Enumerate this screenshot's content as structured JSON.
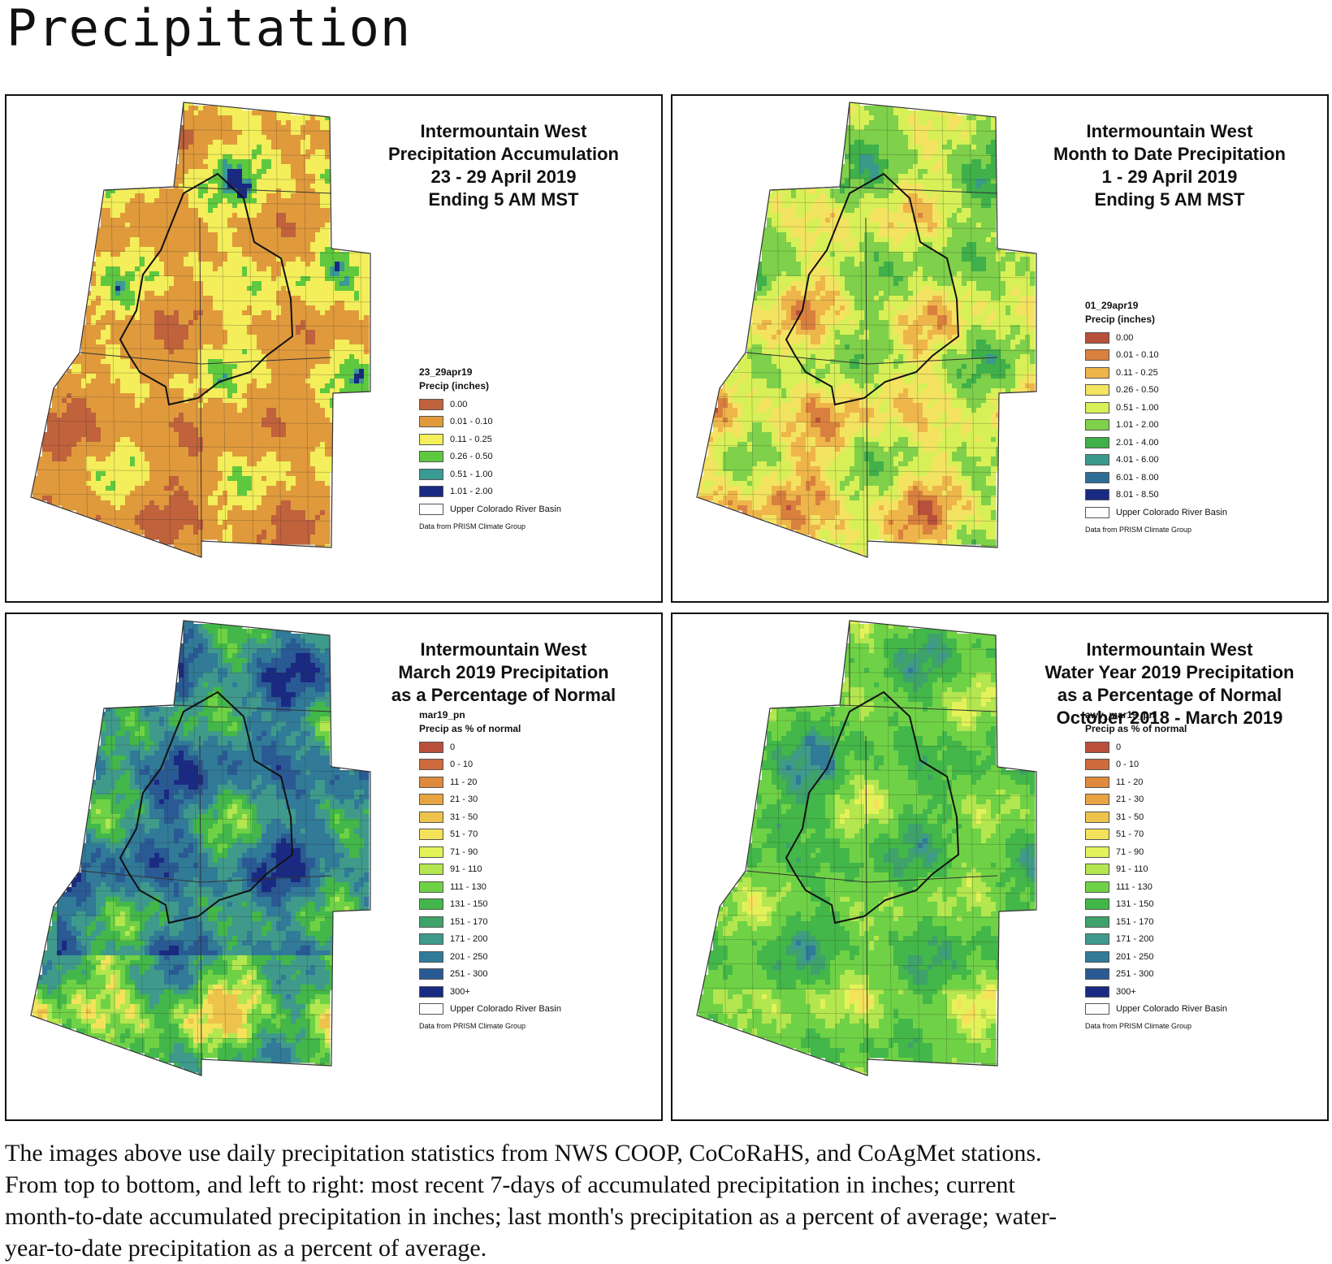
{
  "page_title": "Precipitation",
  "panels": [
    {
      "title_lines": [
        "Intermountain West",
        "Precipitation Accumulation",
        "23 - 29 April 2019",
        "Ending 5 AM MST"
      ],
      "legend_title": "23_29apr19",
      "legend_subtitle": "Precip (inches)",
      "legend_items": [
        {
          "label": "0.00",
          "color": "#c0623c"
        },
        {
          "label": "0.01 - 0.10",
          "color": "#e09a3c"
        },
        {
          "label": "0.11 - 0.25",
          "color": "#f3ee5a"
        },
        {
          "label": "0.26 - 0.50",
          "color": "#5ec93f"
        },
        {
          "label": "0.51 - 1.00",
          "color": "#3a9a94"
        },
        {
          "label": "1.01 - 2.00",
          "color": "#1a2a82"
        },
        {
          "label": "Upper Colorado River Basin",
          "color": "#ffffff"
        }
      ],
      "legend_note": "Data from PRISM Climate Group",
      "map_colors": [
        "#c0623c",
        "#e09a3c",
        "#f3ee5a",
        "#5ec93f",
        "#3a9a94",
        "#1a2a82"
      ],
      "map_weights": [
        0.22,
        0.34,
        0.22,
        0.14,
        0.05,
        0.03
      ]
    },
    {
      "title_lines": [
        "Intermountain West",
        "Month to Date Precipitation",
        "1 - 29 April 2019",
        "Ending 5 AM MST"
      ],
      "legend_title": "01_29apr19",
      "legend_subtitle": "Precip (inches)",
      "legend_items": [
        {
          "label": "0.00",
          "color": "#b7503a"
        },
        {
          "label": "0.01 - 0.10",
          "color": "#d9803e"
        },
        {
          "label": "0.11 - 0.25",
          "color": "#eeb54a"
        },
        {
          "label": "0.26 - 0.50",
          "color": "#f4e361"
        },
        {
          "label": "0.51 - 1.00",
          "color": "#d7f057"
        },
        {
          "label": "1.01 - 2.00",
          "color": "#7fd04a"
        },
        {
          "label": "2.01 - 4.00",
          "color": "#3fb04a"
        },
        {
          "label": "4.01 - 6.00",
          "color": "#3a9a8a"
        },
        {
          "label": "6.01 - 8.00",
          "color": "#2e6e96"
        },
        {
          "label": "8.01 - 8.50",
          "color": "#1a2a82"
        },
        {
          "label": "Upper Colorado River Basin",
          "color": "#ffffff"
        }
      ],
      "legend_note": "Data from PRISM Climate Group",
      "map_colors": [
        "#b7503a",
        "#d9803e",
        "#eeb54a",
        "#f4e361",
        "#d7f057",
        "#7fd04a",
        "#3fb04a",
        "#3a9a8a"
      ],
      "map_weights": [
        0.02,
        0.14,
        0.14,
        0.14,
        0.16,
        0.22,
        0.15,
        0.03
      ]
    },
    {
      "title_lines": [
        "Intermountain West",
        "March 2019 Precipitation",
        "as a Percentage of Normal"
      ],
      "legend_title": "mar19_pn",
      "legend_subtitle": "Precip as % of normal",
      "legend_items": [
        {
          "label": "0",
          "color": "#b94f3b"
        },
        {
          "label": "0 - 10",
          "color": "#cf6a3c"
        },
        {
          "label": "11 - 20",
          "color": "#e08a3e"
        },
        {
          "label": "21 - 30",
          "color": "#e8a443"
        },
        {
          "label": "31 - 50",
          "color": "#eec34c"
        },
        {
          "label": "51 - 70",
          "color": "#f4e25a"
        },
        {
          "label": "71 - 90",
          "color": "#e4f25a"
        },
        {
          "label": "91 - 110",
          "color": "#b3e64f"
        },
        {
          "label": "111 - 130",
          "color": "#6fd246"
        },
        {
          "label": "131 - 150",
          "color": "#43b749"
        },
        {
          "label": "151 - 170",
          "color": "#3ea26a"
        },
        {
          "label": "171 - 200",
          "color": "#3f9a8c"
        },
        {
          "label": "201 - 250",
          "color": "#317a98"
        },
        {
          "label": "251 - 300",
          "color": "#2a5a93"
        },
        {
          "label": "300+",
          "color": "#1a2a82"
        },
        {
          "label": "Upper Colorado River Basin",
          "color": "#ffffff"
        }
      ],
      "legend_note": "Data from PRISM Climate Group",
      "map_colors": [
        "#eec34c",
        "#f4e25a",
        "#b3e64f",
        "#6fd246",
        "#43b749",
        "#3f9a8c",
        "#317a98",
        "#2a5a93",
        "#1a2a82"
      ],
      "map_weights": [
        0.06,
        0.08,
        0.08,
        0.12,
        0.12,
        0.14,
        0.16,
        0.14,
        0.1
      ]
    },
    {
      "title_lines": [
        "Intermountain West",
        "Water Year 2019 Precipitation",
        "as a Percentage of Normal",
        "October 2018 - March 2019"
      ],
      "legend_title": "awy_mar19_pn",
      "legend_subtitle": "Precip as % of normal",
      "legend_items": [
        {
          "label": "0",
          "color": "#b94f3b"
        },
        {
          "label": "0 - 10",
          "color": "#cf6a3c"
        },
        {
          "label": "11 - 20",
          "color": "#e08a3e"
        },
        {
          "label": "21 - 30",
          "color": "#e8a443"
        },
        {
          "label": "31 - 50",
          "color": "#eec34c"
        },
        {
          "label": "51 - 70",
          "color": "#f4e25a"
        },
        {
          "label": "71 - 90",
          "color": "#e4f25a"
        },
        {
          "label": "91 - 110",
          "color": "#b3e64f"
        },
        {
          "label": "111 - 130",
          "color": "#6fd246"
        },
        {
          "label": "131 - 150",
          "color": "#43b749"
        },
        {
          "label": "151 - 170",
          "color": "#3ea26a"
        },
        {
          "label": "171 - 200",
          "color": "#3f9a8c"
        },
        {
          "label": "201 - 250",
          "color": "#317a98"
        },
        {
          "label": "251 - 300",
          "color": "#2a5a93"
        },
        {
          "label": "300+",
          "color": "#1a2a82"
        },
        {
          "label": "Upper Colorado River Basin",
          "color": "#ffffff"
        }
      ],
      "legend_note": "Data from PRISM Climate Group",
      "map_colors": [
        "#f4e25a",
        "#e4f25a",
        "#b3e64f",
        "#6fd246",
        "#43b749",
        "#3ea26a",
        "#3f9a8c",
        "#317a98"
      ],
      "map_weights": [
        0.06,
        0.1,
        0.14,
        0.24,
        0.22,
        0.1,
        0.08,
        0.06
      ]
    }
  ],
  "caption_lines": [
    "The images above use daily precipitation statistics from NWS COOP, CoCoRaHS, and CoAgMet stations.",
    "From top to bottom, and left to right: most recent 7-days of accumulated precipitation in inches; current",
    "month-to-date accumulated precipitation in inches; last month's precipitation as a percent of average; water-",
    "year-to-date precipitation as a percent of average."
  ]
}
